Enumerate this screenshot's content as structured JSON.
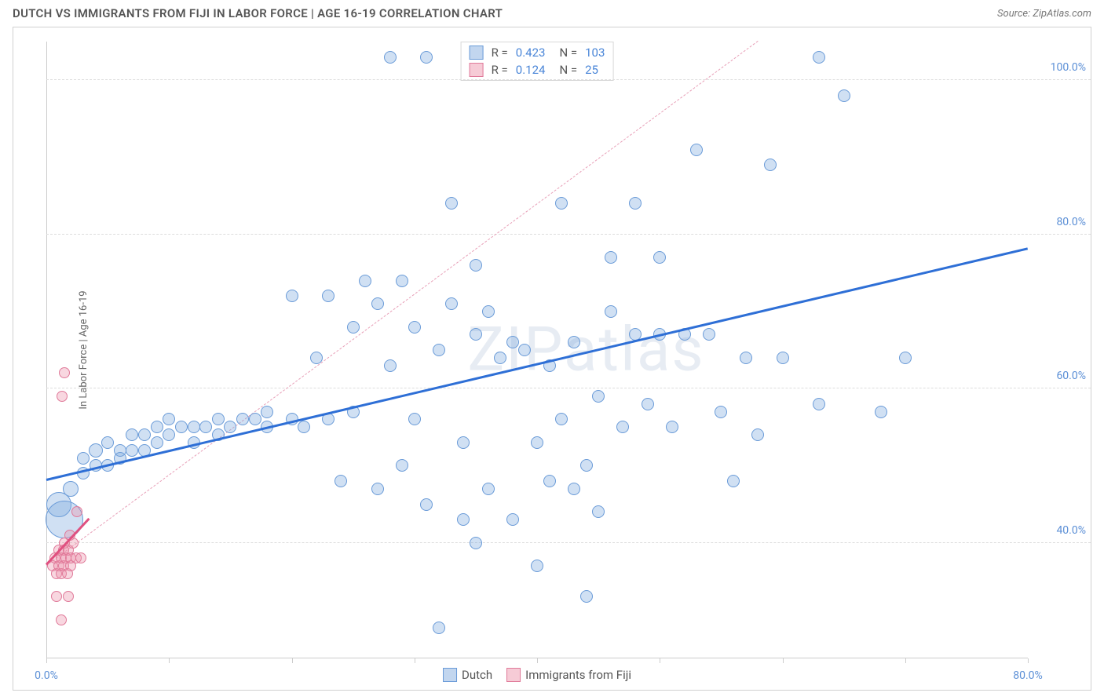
{
  "title": "DUTCH VS IMMIGRANTS FROM FIJI IN LABOR FORCE | AGE 16-19 CORRELATION CHART",
  "source_label": "Source: ZipAtlas.com",
  "watermark": "ZIPatlas",
  "ylabel": "In Labor Force | Age 16-19",
  "chart": {
    "type": "scatter",
    "xlim": [
      0,
      80
    ],
    "ylim": [
      25,
      105
    ],
    "x_ticks": [
      0,
      10,
      20,
      30,
      40,
      50,
      60,
      70,
      80
    ],
    "x_tick_labels": {
      "0": "0.0%",
      "80": "80.0%"
    },
    "y_ticks": [
      40,
      60,
      80,
      100
    ],
    "y_tick_labels": {
      "40": "40.0%",
      "60": "60.0%",
      "80": "80.0%",
      "100": "100.0%"
    },
    "tick_color": "#5b8fd6",
    "grid_color": "#dddddd",
    "background": "#ffffff",
    "series": [
      {
        "name": "Dutch",
        "fill": "rgba(120,165,220,0.35)",
        "stroke": "#6a9bd8",
        "trend_color": "#2e6fd6",
        "trend_style": "solid",
        "trend": {
          "x1": 0,
          "y1": 48,
          "x2": 80,
          "y2": 78
        },
        "R": "0.423",
        "N": "103",
        "points": [
          {
            "x": 1,
            "y": 45,
            "r": 16
          },
          {
            "x": 1.5,
            "y": 43,
            "r": 24
          },
          {
            "x": 2,
            "y": 47,
            "r": 10
          },
          {
            "x": 3,
            "y": 49,
            "r": 8
          },
          {
            "x": 3,
            "y": 51,
            "r": 8
          },
          {
            "x": 4,
            "y": 52,
            "r": 9
          },
          {
            "x": 4,
            "y": 50,
            "r": 8
          },
          {
            "x": 5,
            "y": 50,
            "r": 8
          },
          {
            "x": 5,
            "y": 53,
            "r": 8
          },
          {
            "x": 6,
            "y": 52,
            "r": 8
          },
          {
            "x": 6,
            "y": 51,
            "r": 8
          },
          {
            "x": 7,
            "y": 54,
            "r": 8
          },
          {
            "x": 7,
            "y": 52,
            "r": 8
          },
          {
            "x": 8,
            "y": 52,
            "r": 8
          },
          {
            "x": 8,
            "y": 54,
            "r": 8
          },
          {
            "x": 9,
            "y": 55,
            "r": 8
          },
          {
            "x": 9,
            "y": 53,
            "r": 8
          },
          {
            "x": 10,
            "y": 54,
            "r": 8
          },
          {
            "x": 10,
            "y": 56,
            "r": 8
          },
          {
            "x": 11,
            "y": 55,
            "r": 8
          },
          {
            "x": 12,
            "y": 55,
            "r": 8
          },
          {
            "x": 12,
            "y": 53,
            "r": 8
          },
          {
            "x": 13,
            "y": 55,
            "r": 8
          },
          {
            "x": 14,
            "y": 56,
            "r": 8
          },
          {
            "x": 14,
            "y": 54,
            "r": 8
          },
          {
            "x": 15,
            "y": 55,
            "r": 8
          },
          {
            "x": 16,
            "y": 56,
            "r": 8
          },
          {
            "x": 17,
            "y": 56,
            "r": 8
          },
          {
            "x": 18,
            "y": 57,
            "r": 8
          },
          {
            "x": 18,
            "y": 55,
            "r": 8
          },
          {
            "x": 20,
            "y": 56,
            "r": 8
          },
          {
            "x": 20,
            "y": 72,
            "r": 8
          },
          {
            "x": 21,
            "y": 55,
            "r": 8
          },
          {
            "x": 22,
            "y": 64,
            "r": 8
          },
          {
            "x": 23,
            "y": 56,
            "r": 8
          },
          {
            "x": 23,
            "y": 72,
            "r": 8
          },
          {
            "x": 24,
            "y": 48,
            "r": 8
          },
          {
            "x": 25,
            "y": 68,
            "r": 8
          },
          {
            "x": 25,
            "y": 57,
            "r": 8
          },
          {
            "x": 26,
            "y": 74,
            "r": 8
          },
          {
            "x": 27,
            "y": 71,
            "r": 8
          },
          {
            "x": 27,
            "y": 47,
            "r": 8
          },
          {
            "x": 28,
            "y": 63,
            "r": 8
          },
          {
            "x": 28,
            "y": 103,
            "r": 8
          },
          {
            "x": 29,
            "y": 74,
            "r": 8
          },
          {
            "x": 29,
            "y": 50,
            "r": 8
          },
          {
            "x": 30,
            "y": 56,
            "r": 8
          },
          {
            "x": 30,
            "y": 68,
            "r": 8
          },
          {
            "x": 31,
            "y": 103,
            "r": 8
          },
          {
            "x": 31,
            "y": 45,
            "r": 8
          },
          {
            "x": 32,
            "y": 65,
            "r": 8
          },
          {
            "x": 32,
            "y": 29,
            "r": 8
          },
          {
            "x": 33,
            "y": 71,
            "r": 8
          },
          {
            "x": 33,
            "y": 84,
            "r": 8
          },
          {
            "x": 34,
            "y": 53,
            "r": 8
          },
          {
            "x": 34,
            "y": 43,
            "r": 8
          },
          {
            "x": 35,
            "y": 67,
            "r": 8
          },
          {
            "x": 35,
            "y": 40,
            "r": 8
          },
          {
            "x": 35,
            "y": 76,
            "r": 8
          },
          {
            "x": 36,
            "y": 70,
            "r": 8
          },
          {
            "x": 36,
            "y": 47,
            "r": 8
          },
          {
            "x": 37,
            "y": 64,
            "r": 8
          },
          {
            "x": 38,
            "y": 66,
            "r": 8
          },
          {
            "x": 38,
            "y": 43,
            "r": 8
          },
          {
            "x": 39,
            "y": 65,
            "r": 8
          },
          {
            "x": 40,
            "y": 53,
            "r": 8
          },
          {
            "x": 40,
            "y": 37,
            "r": 8
          },
          {
            "x": 41,
            "y": 63,
            "r": 8
          },
          {
            "x": 41,
            "y": 48,
            "r": 8
          },
          {
            "x": 42,
            "y": 84,
            "r": 8
          },
          {
            "x": 42,
            "y": 56,
            "r": 8
          },
          {
            "x": 43,
            "y": 47,
            "r": 8
          },
          {
            "x": 43,
            "y": 66,
            "r": 8
          },
          {
            "x": 44,
            "y": 50,
            "r": 8
          },
          {
            "x": 44,
            "y": 33,
            "r": 8
          },
          {
            "x": 45,
            "y": 59,
            "r": 8
          },
          {
            "x": 45,
            "y": 44,
            "r": 8
          },
          {
            "x": 46,
            "y": 70,
            "r": 8
          },
          {
            "x": 46,
            "y": 77,
            "r": 8
          },
          {
            "x": 47,
            "y": 55,
            "r": 8
          },
          {
            "x": 48,
            "y": 84,
            "r": 8
          },
          {
            "x": 48,
            "y": 67,
            "r": 8
          },
          {
            "x": 49,
            "y": 58,
            "r": 8
          },
          {
            "x": 50,
            "y": 77,
            "r": 8
          },
          {
            "x": 50,
            "y": 67,
            "r": 8
          },
          {
            "x": 51,
            "y": 55,
            "r": 8
          },
          {
            "x": 52,
            "y": 67,
            "r": 8
          },
          {
            "x": 53,
            "y": 91,
            "r": 8
          },
          {
            "x": 54,
            "y": 67,
            "r": 8
          },
          {
            "x": 55,
            "y": 57,
            "r": 8
          },
          {
            "x": 56,
            "y": 48,
            "r": 8
          },
          {
            "x": 57,
            "y": 64,
            "r": 8
          },
          {
            "x": 58,
            "y": 54,
            "r": 8
          },
          {
            "x": 59,
            "y": 89,
            "r": 8
          },
          {
            "x": 60,
            "y": 64,
            "r": 8
          },
          {
            "x": 63,
            "y": 103,
            "r": 8
          },
          {
            "x": 63,
            "y": 58,
            "r": 8
          },
          {
            "x": 65,
            "y": 98,
            "r": 8
          },
          {
            "x": 68,
            "y": 57,
            "r": 8
          },
          {
            "x": 70,
            "y": 64,
            "r": 8
          }
        ]
      },
      {
        "name": "Immigrants from Fiji",
        "fill": "rgba(235,140,165,0.35)",
        "stroke": "#e07a9a",
        "trend_color": "#e05080",
        "trend_style": "solid",
        "trend": {
          "x1": 0,
          "y1": 37,
          "x2": 3.5,
          "y2": 43
        },
        "R": "0.124",
        "N": "25",
        "points": [
          {
            "x": 0.5,
            "y": 37,
            "r": 7
          },
          {
            "x": 0.7,
            "y": 38,
            "r": 7
          },
          {
            "x": 0.8,
            "y": 36,
            "r": 7
          },
          {
            "x": 1.0,
            "y": 39,
            "r": 7
          },
          {
            "x": 1.0,
            "y": 37,
            "r": 7
          },
          {
            "x": 1.2,
            "y": 38,
            "r": 7
          },
          {
            "x": 1.2,
            "y": 36,
            "r": 7
          },
          {
            "x": 1.4,
            "y": 39,
            "r": 7
          },
          {
            "x": 1.4,
            "y": 37,
            "r": 7
          },
          {
            "x": 1.5,
            "y": 40,
            "r": 7
          },
          {
            "x": 1.6,
            "y": 38,
            "r": 7
          },
          {
            "x": 1.7,
            "y": 36,
            "r": 7
          },
          {
            "x": 1.8,
            "y": 39,
            "r": 7
          },
          {
            "x": 1.9,
            "y": 41,
            "r": 7
          },
          {
            "x": 2.0,
            "y": 37,
            "r": 7
          },
          {
            "x": 2.0,
            "y": 38,
            "r": 7
          },
          {
            "x": 2.2,
            "y": 40,
            "r": 7
          },
          {
            "x": 2.4,
            "y": 38,
            "r": 7
          },
          {
            "x": 2.5,
            "y": 44,
            "r": 7
          },
          {
            "x": 0.8,
            "y": 33,
            "r": 7
          },
          {
            "x": 1.8,
            "y": 33,
            "r": 7
          },
          {
            "x": 1.2,
            "y": 30,
            "r": 7
          },
          {
            "x": 2.8,
            "y": 38,
            "r": 7
          },
          {
            "x": 1.3,
            "y": 59,
            "r": 7
          },
          {
            "x": 1.5,
            "y": 62,
            "r": 7
          }
        ]
      }
    ],
    "reference_line": {
      "color": "#e8a0b8",
      "style": "dashed",
      "x1": 0,
      "y1": 37,
      "x2": 58,
      "y2": 105
    },
    "legend_top": [
      {
        "swatch_fill": "rgba(120,165,220,0.45)",
        "swatch_stroke": "#6a9bd8",
        "R": "0.423",
        "N": "103"
      },
      {
        "swatch_fill": "rgba(235,140,165,0.45)",
        "swatch_stroke": "#e07a9a",
        "R": "0.124",
        "N": "25"
      }
    ],
    "legend_bottom": [
      {
        "swatch_fill": "rgba(120,165,220,0.45)",
        "swatch_stroke": "#6a9bd8",
        "label": "Dutch"
      },
      {
        "swatch_fill": "rgba(235,140,165,0.45)",
        "swatch_stroke": "#e07a9a",
        "label": "Immigrants from Fiji"
      }
    ],
    "legend_text_color": "#555555",
    "legend_value_color": "#4a86d8"
  }
}
